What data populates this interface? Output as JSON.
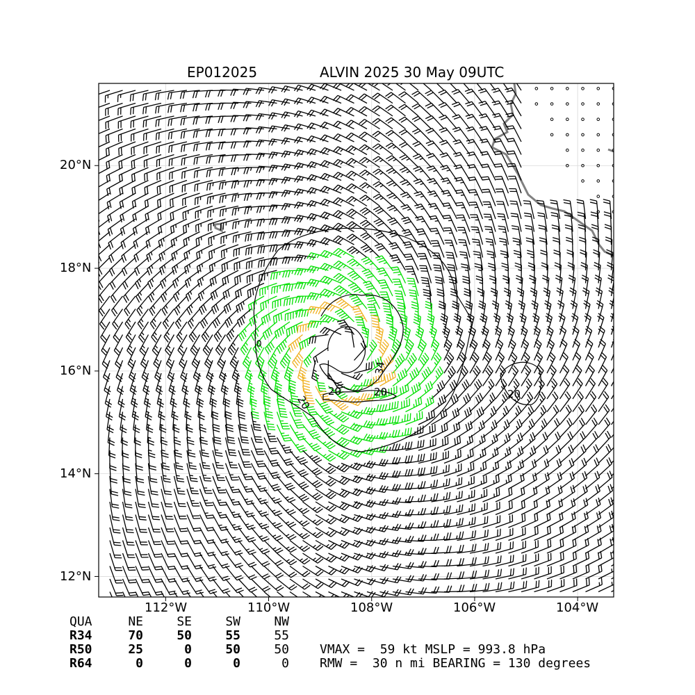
{
  "title": {
    "storm_id": "EP012025",
    "description": "ALVIN 2025 30 May 09UTC"
  },
  "map": {
    "lat_labels": [
      "20°N",
      "18°N",
      "16°N",
      "14°N",
      "12°N"
    ],
    "lon_labels": [
      "112°W",
      "110°W",
      "108°W",
      "106°W",
      "104°W"
    ],
    "lat_range": [
      11.6,
      21.6
    ],
    "lon_range": [
      -113.3,
      -103.3
    ],
    "grid": true,
    "contour_labels": [
      "20",
      "20",
      "20",
      "20",
      "34",
      "20"
    ],
    "colors": {
      "barb_default": "#000000",
      "barb_34kt": "#00e000",
      "barb_50kt": "#f0b020",
      "coastline": "#808080",
      "contour": "#000000",
      "calm_marker": "#000000"
    },
    "storm_center": {
      "lat": 16.3,
      "lon": -108.6
    }
  },
  "wind_radii": {
    "headers": [
      "QUA",
      "NE",
      "SE",
      "SW",
      "NW"
    ],
    "rows": [
      {
        "label": "R34",
        "values": [
          "70",
          "50",
          "55",
          "55"
        ]
      },
      {
        "label": "R50",
        "values": [
          "25",
          "0",
          "50",
          "50"
        ]
      },
      {
        "label": "R64",
        "values": [
          "0",
          "0",
          "0",
          "0"
        ]
      }
    ]
  },
  "intensity": {
    "line1": "VMAX =  59 kt MSLP = 993.8 hPa",
    "line2": "RMW =  30 n mi BEARING = 130 degrees"
  }
}
